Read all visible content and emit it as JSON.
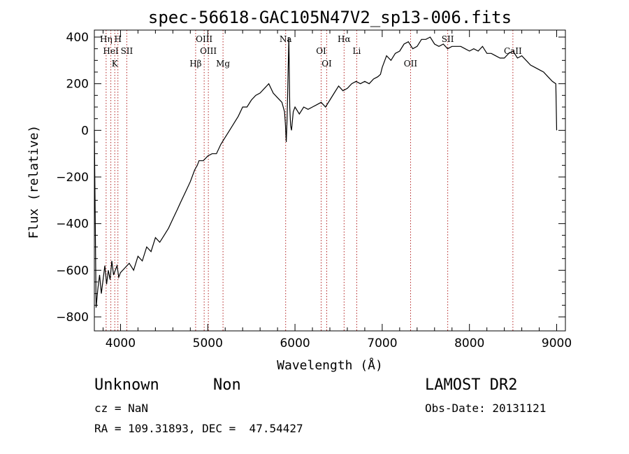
{
  "chart_data": {
    "type": "line",
    "title": "spec-56618-GAC105N47V2_sp13-006.fits",
    "xlabel": "Wavelength (Å)",
    "ylabel": "Flux (relative)",
    "xlim": [
      3700,
      9100
    ],
    "ylim": [
      -860,
      430
    ],
    "xticks": [
      4000,
      5000,
      6000,
      7000,
      8000,
      9000
    ],
    "yticks": [
      -800,
      -600,
      -400,
      -200,
      0,
      200,
      400
    ],
    "grid": false,
    "series": [
      {
        "x": [
          3700,
          3720,
          3740,
          3760,
          3780,
          3800,
          3820,
          3840,
          3860,
          3880,
          3900,
          3920,
          3940,
          3960,
          3980,
          4000,
          4050,
          4100,
          4150,
          4200,
          4250,
          4300,
          4350,
          4400,
          4450,
          4500,
          4550,
          4600,
          4650,
          4700,
          4750,
          4800,
          4850,
          4880,
          4900,
          4950,
          5000,
          5050,
          5100,
          5150,
          5200,
          5250,
          5300,
          5350,
          5400,
          5450,
          5500,
          5550,
          5600,
          5650,
          5700,
          5750,
          5800,
          5850,
          5880,
          5890,
          5900,
          5910,
          5930,
          5940,
          5950,
          5960,
          5980,
          6000,
          6050,
          6100,
          6150,
          6200,
          6250,
          6300,
          6350,
          6400,
          6450,
          6500,
          6550,
          6600,
          6650,
          6700,
          6750,
          6800,
          6850,
          6900,
          6950,
          6980,
          7000,
          7050,
          7100,
          7150,
          7200,
          7250,
          7300,
          7350,
          7400,
          7450,
          7500,
          7550,
          7600,
          7650,
          7700,
          7750,
          7800,
          7850,
          7900,
          7950,
          8000,
          8050,
          8100,
          8150,
          8200,
          8250,
          8300,
          8350,
          8400,
          8450,
          8500,
          8550,
          8600,
          8650,
          8700,
          8750,
          8800,
          8850,
          8900,
          8950,
          8990,
          9000
        ],
        "y": [
          0,
          -760,
          -680,
          -620,
          -700,
          -640,
          -580,
          -660,
          -600,
          -640,
          -560,
          -620,
          -600,
          -580,
          -630,
          -610,
          -590,
          -570,
          -600,
          -540,
          -560,
          -500,
          -520,
          -460,
          -480,
          -450,
          -420,
          -380,
          -340,
          -300,
          -260,
          -220,
          -170,
          -150,
          -130,
          -130,
          -110,
          -100,
          -100,
          -60,
          -30,
          0,
          30,
          60,
          100,
          100,
          130,
          150,
          160,
          180,
          200,
          160,
          140,
          120,
          80,
          30,
          -50,
          50,
          400,
          100,
          20,
          0,
          80,
          100,
          70,
          100,
          90,
          100,
          110,
          120,
          100,
          130,
          160,
          190,
          170,
          180,
          200,
          210,
          200,
          210,
          200,
          220,
          230,
          240,
          270,
          320,
          300,
          330,
          340,
          370,
          380,
          350,
          360,
          390,
          390,
          400,
          370,
          360,
          370,
          350,
          360,
          360,
          360,
          350,
          340,
          350,
          340,
          360,
          330,
          330,
          320,
          310,
          310,
          330,
          340,
          310,
          320,
          300,
          280,
          270,
          260,
          250,
          230,
          210,
          200,
          0
        ]
      }
    ],
    "lines": [
      {
        "label": "Hη",
        "x": 3835
      },
      {
        "label": "HeI",
        "x": 3889
      },
      {
        "label": "K",
        "x": 3934
      },
      {
        "label": "H",
        "x": 3970
      },
      {
        "label": "SII",
        "x": 4072
      },
      {
        "label": "Hβ",
        "x": 4861
      },
      {
        "label": "OIII",
        "x": 4959
      },
      {
        "label": "OIII",
        "x": 5007
      },
      {
        "label": "Mg",
        "x": 5175
      },
      {
        "label": "Na",
        "x": 5893
      },
      {
        "label": "OI",
        "x": 6300
      },
      {
        "label": "OI",
        "x": 6364
      },
      {
        "label": "Hα",
        "x": 6563
      },
      {
        "label": "Li",
        "x": 6708
      },
      {
        "label": "OII",
        "x": 7325
      },
      {
        "label": "SII",
        "x": 7751
      },
      {
        "label": "CaII",
        "x": 8498
      }
    ],
    "line_color": "#b22222"
  },
  "info": {
    "object_class": "Unknown",
    "subclass": "Non",
    "cz": "cz = NaN",
    "coords": "RA = 109.31893, DEC =  47.54427",
    "survey": "LAMOST DR2",
    "obs_date": "Obs-Date: 20131121"
  }
}
